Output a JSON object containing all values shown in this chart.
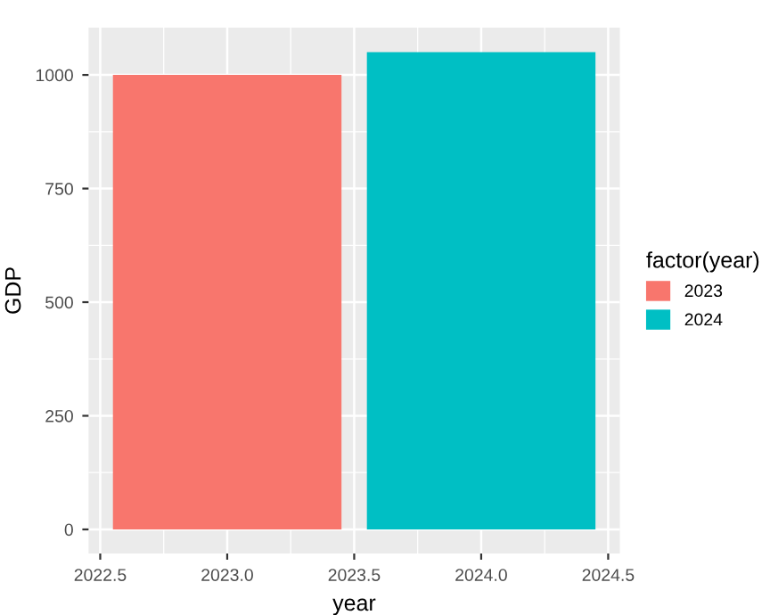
{
  "chart_data": {
    "type": "bar",
    "xlabel": "year",
    "ylabel": "GDP",
    "legend_title": "factor(year)",
    "series": [
      {
        "name": "2023",
        "color": "#f8766d",
        "x": [
          2023
        ],
        "values": [
          1000
        ]
      },
      {
        "name": "2024",
        "color": "#00bfc4",
        "x": [
          2024
        ],
        "values": [
          1050
        ]
      }
    ],
    "xlim": [
      2022.454,
      2024.546
    ],
    "xticks": [
      {
        "value": 2022.5,
        "label": "2022.5"
      },
      {
        "value": 2023,
        "label": "2023.0"
      },
      {
        "value": 2023.5,
        "label": "2023.5"
      },
      {
        "value": 2024,
        "label": "2024.0"
      },
      {
        "value": 2024.5,
        "label": "2024.5"
      }
    ],
    "ylim": [
      -53,
      1104
    ],
    "yticks": [
      0,
      250,
      500,
      750,
      1000
    ],
    "grid": true,
    "legend": "right"
  }
}
